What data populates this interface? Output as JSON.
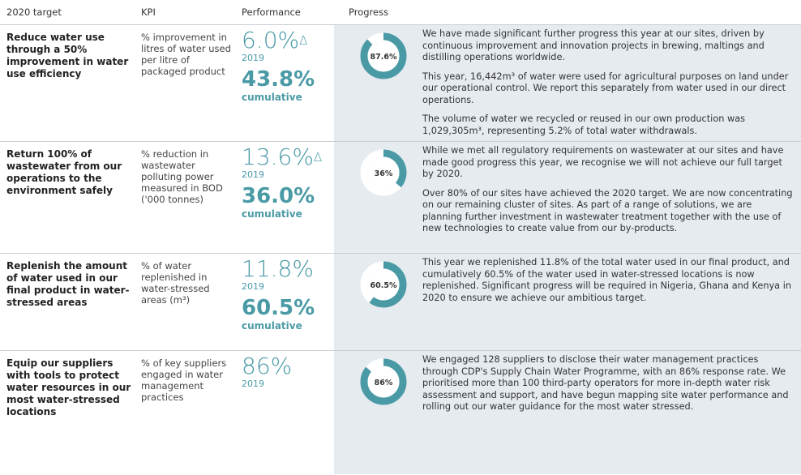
{
  "header": [
    "2020 target",
    "KPI",
    "Performance",
    "Progress"
  ],
  "rows": [
    {
      "target": "Reduce water use through a 50% improvement in water use efficiency",
      "kpi": "% improvement in litres of water used per litre of packaged product",
      "performance": "6.0%",
      "note": "Δ",
      "year": "2019",
      "cumulative": "43.8%",
      "cumulative_label": "cumulative",
      "progress": {
        "value": 87.6,
        "label": "87.6%"
      },
      "text": [
        "We have made significant further progress this year at our sites, driven by continuous improvement and innovation projects in brewing, maltings and distilling operations worldwide.",
        "This year, 16,442m³ of water were used for agricultural purposes on land under our operational control. We report this separately from water used in our direct operations.",
        "The volume of water we recycled or reused in our own production was 1,029,305m³, representing 5.2% of total water withdrawals."
      ]
    },
    {
      "target": "Return 100% of wastewater from our operations to the environment safely",
      "kpi": "% reduction in wastewater polluting power measured in BOD ('000 tonnes)",
      "performance": "13.6%",
      "note": "Δ",
      "year": "2019",
      "cumulative": "36.0%",
      "cumulative_label": "cumulative",
      "progress": {
        "value": 36,
        "label": "36%"
      },
      "text": [
        "While we met all regulatory requirements on wastewater at our sites and have made good progress this year, we recognise we will not achieve our full target by 2020.",
        "Over 80% of our sites have achieved the 2020 target. We are now concentrating on our remaining cluster of sites. As part of a range of solutions, we are planning further investment in wastewater treatment together with the use of new technologies to create value from our by-products."
      ]
    },
    {
      "target": "Replenish the amount of water used in our final product in water-stressed areas",
      "kpi": "% of water replenished in water-stressed areas (m³)",
      "performance": "11.8%",
      "year": "2019",
      "cumulative": "60.5%",
      "cumulative_label": "cumulative",
      "progress": {
        "value": 60.5,
        "label": "60.5%"
      },
      "text": [
        "This year we replenished 11.8% of the total water used in our final product, and cumulatively 60.5% of the water used in water-stressed locations is now replenished. Significant progress will be required in Nigeria, Ghana and Kenya in 2020 to ensure we achieve our ambitious target."
      ]
    },
    {
      "target": "Equip our suppliers with tools to protect water resources in our most water-stressed locations",
      "kpi": "% of key suppliers engaged in water management practices",
      "performance": "86%",
      "year": "2019",
      "progress": {
        "value": 86,
        "label": "86%"
      },
      "text": [
        "We engaged 128 suppliers to disclose their water management practices through CDP's Supply Chain Water Programme, with an 86% response rate. We prioritised more than 100 third-party operators for more in-depth water risk assessment and support, and have begun mapping site water performance and rolling out our water guidance for the most water stressed."
      ]
    }
  ]
}
